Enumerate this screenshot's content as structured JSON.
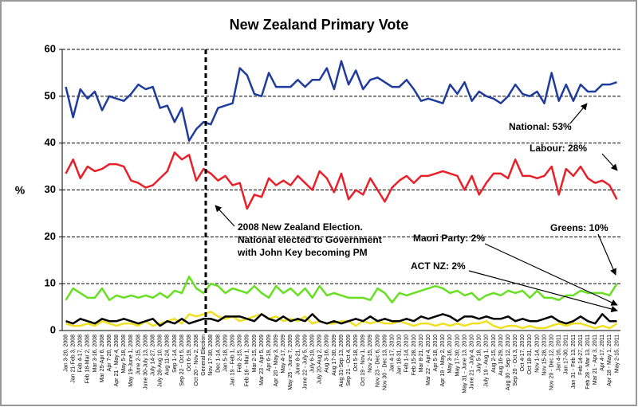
{
  "chart_data": {
    "type": "line",
    "title": "New Zealand Primary Vote",
    "ylabel": "%",
    "ylim": [
      0,
      60
    ],
    "yticks": [
      0,
      10,
      20,
      30,
      40,
      50,
      60
    ],
    "grid": true,
    "categories": [
      "Jan 3-20, 2008",
      "Jan 21-Feb 3, 2008",
      "Feb 4-17, 2008",
      "Feb 18-Mar 2, 2008",
      "Mar 3-16, 2008",
      "Mar 25-Apr 6, 2008",
      "Apr 7-20, 2008",
      "Apr 21 - May 4, 2008",
      "May 5-18, 2008",
      "May 19-June 1, 2008",
      "June 2-15, 2008",
      "June 30-July 13, 2008",
      "July 14-27, 2008",
      "July 28-Aug 10, 2008",
      "Aug 11-24, 2008",
      "Sep 1-14, 2008",
      "Sep 22 - Oct 5, 2008",
      "Oct 6-19, 2008",
      "Oct 20 - Nov 2, 2008",
      "General Election",
      "Nov 17-30, 2008",
      "Dec 1-14, 2008",
      "Jan 5-18, 2009",
      "Jan 19 - Feb 1, 2009",
      "Feb 2-15, 2009",
      "Feb 16 - Mar 1, 2009",
      "Mar 2-15, 2009",
      "Mar 23 - Apr 5, 2009",
      "Apr 6-19, 2009",
      "Apr 20 - May 3, 2009",
      "May 4-17, 2009",
      "May 25 - June 7, 2009",
      "June 8-21, 2009",
      "June 22 - July 5, 2009",
      "July 6-19, 2009",
      "July 20-Aug 2, 2009",
      "Aug 3-16, 2009",
      "Aug 17-30, 2009",
      "Aug 31-Sep 13, 2009",
      "Sep 21 - Oct 4, 2009",
      "Oct 5-18, 2009",
      "Oct 19 - Nov 1, 2009",
      "Nov 2-15, 2009",
      "Nov 23 - Dec 6, 2009",
      "Nov 30 - Dec 13, 2009",
      "Jan 4-17, 2010",
      "Jan 18-31, 2010",
      "Feb 1-14, 2010",
      "Feb 15-28, 2010",
      "Mar 8-21, 2010",
      "Mar 22 - Apr 4, 2010",
      "Apr 5-18, 2010",
      "Apr 19 - May 2, 2010",
      "May 3-16, 2010",
      "May 17-30, 2010",
      "May 31 - June 13, 2010",
      "June 21 - July 4, 2010",
      "July 5-18, 2010",
      "July 19 - Aug 1, 2010",
      "Aug 2-15, 2010",
      "Aug 16-29, 2010",
      "Aug 30 - Sep 12, 2010",
      "Sep 20 - Oct 3, 2010",
      "Oct 4-17, 2010",
      "Oct 18-31, 2010",
      "Nov 1-14, 2010",
      "Nov 15-28, 2010",
      "Nov 29 - Dec 12, 2010",
      "Jan 4-16, 2011",
      "Jan 17-30, 2011",
      "Jan 31 - Feb 13, 2011",
      "Feb 14-27, 2011",
      "Feb 28 - Mar 13, 2011",
      "Mar 21 - Apr 3, 2011",
      "Apr 4-17, 2011",
      "Apr 18 - May 1, 2011",
      "May 2-15, 2011"
    ],
    "series": [
      {
        "color": "#1f3c9c",
        "values": [
          52,
          45.5,
          51.5,
          49.5,
          51,
          47,
          50,
          49.5,
          49,
          50.5,
          52.5,
          51.5,
          52,
          47.5,
          48,
          44.5,
          47.5,
          40.5,
          43,
          44.5,
          44,
          47.5,
          48,
          48.5,
          56,
          54.5,
          50.5,
          50,
          55,
          52,
          52,
          52,
          53.5,
          52,
          53.5,
          53.5,
          56,
          51.5,
          57.5,
          52.5,
          55.5,
          51.5,
          53.5,
          54,
          53,
          52,
          52,
          53.5,
          51.5,
          49,
          49.5,
          49,
          48.5,
          52.5,
          50.5,
          53,
          49,
          51,
          50,
          49.5,
          48.5,
          50,
          52.5,
          50.5,
          50,
          51,
          48.5,
          55,
          49,
          52.5,
          49,
          52.5,
          51,
          51,
          52.5,
          52.5,
          53
        ]
      },
      {
        "color": "#e8202a",
        "values": [
          33.5,
          36.5,
          32.5,
          35,
          34,
          34.5,
          35.5,
          35.5,
          35,
          32,
          31.5,
          30.5,
          31,
          32.5,
          34,
          38,
          36.5,
          37.5,
          32,
          34.5,
          33.5,
          32,
          33,
          31,
          31.5,
          26,
          29,
          28.5,
          32.5,
          31,
          32,
          31,
          33,
          31.5,
          30,
          34,
          32.5,
          29.5,
          33.5,
          28,
          30,
          29,
          32.5,
          30,
          27.5,
          30.5,
          32,
          33,
          31.5,
          33,
          33,
          33.5,
          34,
          33.5,
          33,
          30,
          33,
          29,
          31.5,
          33.5,
          33.5,
          32.5,
          36.5,
          33,
          33,
          32.5,
          33,
          35,
          29,
          34.5,
          33,
          35,
          32.5,
          31.5,
          32,
          31,
          28
        ]
      },
      {
        "color": "#66e020",
        "values": [
          6.5,
          9,
          8,
          7,
          7,
          9,
          6.5,
          7.5,
          7,
          7.5,
          7,
          7.5,
          7,
          8,
          7,
          8.5,
          8,
          11.5,
          9,
          8,
          10,
          9.5,
          8,
          9,
          8.5,
          8,
          9.5,
          8,
          7,
          9.5,
          8,
          9,
          7.5,
          9,
          7,
          9.5,
          7.5,
          8,
          7.5,
          7,
          7,
          7,
          6.5,
          9,
          8,
          6,
          8,
          7.5,
          8,
          8.5,
          9,
          9.5,
          9,
          8,
          8.5,
          7.5,
          8,
          6.5,
          7.5,
          8,
          7.5,
          8.5,
          8,
          8.5,
          7,
          8.5,
          7,
          7,
          6.5,
          7.5,
          7.5,
          8.5,
          8,
          8,
          8,
          7.5,
          10
        ]
      },
      {
        "color": "#000000",
        "values": [
          2,
          1.5,
          2.5,
          2,
          1.5,
          2.5,
          2,
          2,
          2.5,
          2,
          1.5,
          2,
          2.5,
          1,
          2,
          1.5,
          2.5,
          1.5,
          2,
          2.5,
          2.5,
          2,
          3,
          3,
          3,
          2.5,
          2,
          3.5,
          2.5,
          2,
          3,
          2,
          2.5,
          2,
          3.5,
          2,
          1.5,
          2,
          1.5,
          2,
          2.5,
          2,
          3,
          2,
          2.5,
          2,
          2,
          2.5,
          2,
          3,
          2.5,
          3,
          3.5,
          3,
          2,
          3,
          3,
          2.5,
          3,
          2.5,
          2.5,
          3,
          2,
          2.5,
          2,
          2,
          2.5,
          3,
          2,
          1.5,
          2,
          3,
          2,
          1.5,
          3.5,
          2,
          2
        ]
      },
      {
        "color": "#f0e020",
        "values": [
          1.5,
          1,
          1,
          1.5,
          1,
          2,
          1.5,
          1,
          1.5,
          1.5,
          1,
          2,
          1,
          1.5,
          2,
          2.5,
          1.5,
          3.5,
          3,
          3.5,
          4,
          3,
          2.5,
          3,
          2,
          2.5,
          3,
          3.5,
          2.5,
          3,
          2,
          2.5,
          2,
          3,
          1.5,
          2,
          1.5,
          1.5,
          2,
          2,
          1,
          2,
          1.5,
          2,
          1.5,
          1.5,
          2,
          1.5,
          1,
          1.5,
          1.5,
          1,
          1.5,
          1,
          1.5,
          1,
          1.5,
          1.5,
          2,
          1,
          0.5,
          1,
          1,
          0.5,
          1,
          0.5,
          0.5,
          1,
          1.5,
          1,
          1.5,
          1.5,
          1,
          0.5,
          1,
          0.5,
          1.5
        ]
      }
    ],
    "annotations": {
      "national": "National: 53%",
      "labour": "Labour: 28%",
      "greens": "Greens: 10%",
      "maori": "Maori Party: 2%",
      "act": "ACT NZ: 2%",
      "election": [
        "2008 New Zealand Election.",
        "National elected to Government",
        "with John Key becoming PM"
      ]
    }
  }
}
